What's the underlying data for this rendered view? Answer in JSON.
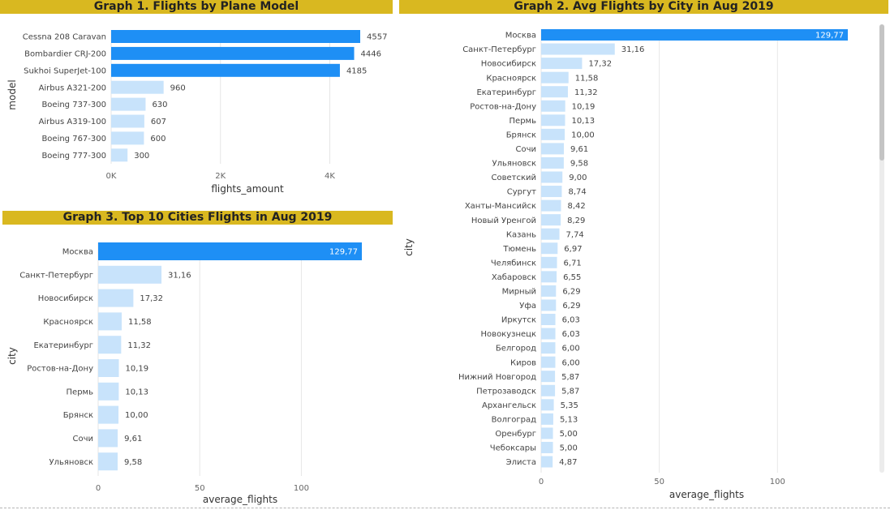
{
  "colors": {
    "highlight": "#1e8ff5",
    "normal": "#c8e3fb",
    "title_bg": "#d9b820",
    "grid": "#e6e6e6",
    "text": "#444444"
  },
  "graph1": {
    "title": "Graph 1. Flights by Plane Model",
    "chart_data": {
      "type": "bar",
      "orientation": "horizontal",
      "categories": [
        "Cessna 208 Caravan",
        "Bombardier CRJ-200",
        "Sukhoi SuperJet-100",
        "Airbus A321-200",
        "Boeing 737-300",
        "Airbus A319-100",
        "Boeing 767-300",
        "Boeing 777-300"
      ],
      "values": [
        4557,
        4446,
        4185,
        960,
        630,
        607,
        600,
        300
      ],
      "value_labels": [
        "4557",
        "4446",
        "4185",
        "960",
        "630",
        "607",
        "600",
        "300"
      ],
      "highlighted": [
        true,
        true,
        true,
        false,
        false,
        false,
        false,
        false
      ],
      "xlabel": "flights_amount",
      "ylabel": "model",
      "xlim": [
        0,
        4557
      ],
      "xticks": [
        0,
        2000,
        4000
      ],
      "xtick_labels": [
        "0K",
        "2K",
        "4K"
      ],
      "grid": true
    }
  },
  "graph2": {
    "title": "Graph 2. Avg Flights by City in Aug 2019",
    "chart_data": {
      "type": "bar",
      "orientation": "horizontal",
      "categories": [
        "Москва",
        "Санкт-Петербург",
        "Новосибирск",
        "Красноярск",
        "Екатеринбург",
        "Ростов-на-Дону",
        "Пермь",
        "Брянск",
        "Сочи",
        "Ульяновск",
        "Советский",
        "Сургут",
        "Ханты-Мансийск",
        "Новый Уренгой",
        "Казань",
        "Тюмень",
        "Челябинск",
        "Хабаровск",
        "Мирный",
        "Уфа",
        "Иркутск",
        "Новокузнецк",
        "Белгород",
        "Киров",
        "Нижний Новгород",
        "Петрозаводск",
        "Архангельск",
        "Волгоград",
        "Оренбург",
        "Чебоксары",
        "Элиста"
      ],
      "values": [
        129.77,
        31.16,
        17.32,
        11.58,
        11.32,
        10.19,
        10.13,
        10.0,
        9.61,
        9.58,
        9.0,
        8.74,
        8.42,
        8.29,
        7.74,
        6.97,
        6.71,
        6.55,
        6.29,
        6.29,
        6.03,
        6.03,
        6.0,
        6.0,
        5.87,
        5.87,
        5.35,
        5.13,
        5.0,
        5.0,
        4.87
      ],
      "value_labels": [
        "129,77",
        "31,16",
        "17,32",
        "11,58",
        "11,32",
        "10,19",
        "10,13",
        "10,00",
        "9,61",
        "9,58",
        "9,00",
        "8,74",
        "8,42",
        "8,29",
        "7,74",
        "6,97",
        "6,71",
        "6,55",
        "6,29",
        "6,29",
        "6,03",
        "6,03",
        "6,00",
        "6,00",
        "5,87",
        "5,87",
        "5,35",
        "5,13",
        "5,00",
        "5,00",
        "4,87"
      ],
      "highlighted_index": 0,
      "xlabel": "average_flights",
      "ylabel": "city",
      "xlim": [
        0,
        129.77
      ],
      "xticks": [
        0,
        50,
        100
      ],
      "xtick_labels": [
        "0",
        "50",
        "100"
      ],
      "grid": true
    }
  },
  "graph3": {
    "title": "Graph 3. Top 10 Cities Flights in Aug 2019",
    "chart_data": {
      "type": "bar",
      "orientation": "horizontal",
      "categories": [
        "Москва",
        "Санкт-Петербург",
        "Новосибирск",
        "Красноярск",
        "Екатеринбург",
        "Ростов-на-Дону",
        "Пермь",
        "Брянск",
        "Сочи",
        "Ульяновск"
      ],
      "values": [
        129.77,
        31.16,
        17.32,
        11.58,
        11.32,
        10.19,
        10.13,
        10.0,
        9.61,
        9.58
      ],
      "value_labels": [
        "129,77",
        "31,16",
        "17,32",
        "11,58",
        "11,32",
        "10,19",
        "10,13",
        "10,00",
        "9,61",
        "9,58"
      ],
      "highlighted_index": 0,
      "xlabel": "average_flights",
      "ylabel": "city",
      "xlim": [
        0,
        129.77
      ],
      "xticks": [
        0,
        50,
        100
      ],
      "xtick_labels": [
        "0",
        "50",
        "100"
      ],
      "grid": true
    }
  }
}
